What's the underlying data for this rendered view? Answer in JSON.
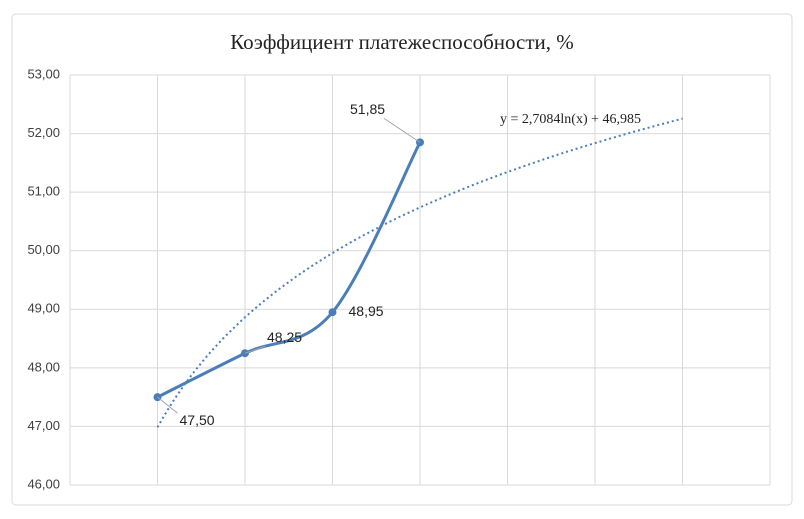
{
  "chart_data": {
    "type": "line",
    "title": "Коэффициент платежеспособности, %",
    "categories": [
      null,
      null,
      null,
      null,
      null,
      null,
      null
    ],
    "series": [
      {
        "color": "#4a7ebb",
        "values": [
          47.5,
          48.25,
          48.95,
          51.85,
          null,
          null,
          null
        ],
        "value_labels": [
          "47,50",
          "48,25",
          "48,95",
          "51,85",
          null,
          null,
          null
        ]
      }
    ],
    "trendline": {
      "type": "log",
      "a": 2.7084,
      "b": 46.985,
      "label": "y = 2,7084ln(x) + 46,985",
      "color": "#4a7ebb"
    },
    "ylim": [
      46,
      53
    ],
    "yticks": [
      {
        "value": 46,
        "label": "46,00"
      },
      {
        "value": 47,
        "label": "47,00"
      },
      {
        "value": 48,
        "label": "48,00"
      },
      {
        "value": 49,
        "label": "49,00"
      },
      {
        "value": 50,
        "label": "50,00"
      },
      {
        "value": 51,
        "label": "51,00"
      },
      {
        "value": 52,
        "label": "52,00"
      },
      {
        "value": 53,
        "label": "53,00"
      }
    ],
    "grid": true,
    "smooth": true
  }
}
